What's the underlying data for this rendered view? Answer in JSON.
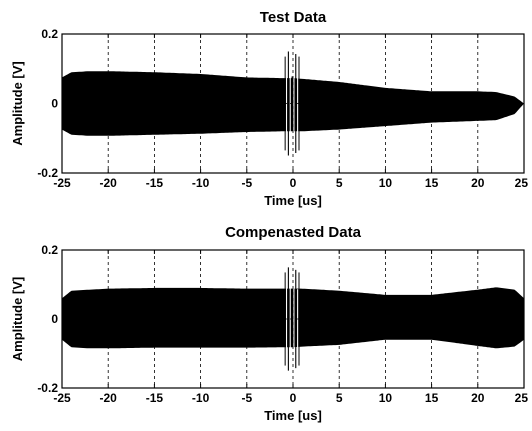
{
  "chart_data": [
    {
      "type": "area",
      "title": "Test Data",
      "xlabel": "Time [us]",
      "ylabel": "Amplitude [V]",
      "xlim": [
        -25,
        25
      ],
      "ylim": [
        -0.2,
        0.2
      ],
      "xticks": [
        -25,
        -20,
        -15,
        -10,
        -5,
        0,
        5,
        10,
        15,
        20,
        25
      ],
      "yticks": [
        -0.2,
        0,
        0.2
      ],
      "ytick_labels": [
        "-0.2",
        "0",
        "0.2"
      ],
      "grid": true,
      "color": "#000000",
      "envelope": {
        "x": [
          -25,
          -24,
          -22,
          -20,
          -15,
          -10,
          -5,
          -1,
          0,
          1,
          5,
          10,
          15,
          20,
          22,
          24,
          25
        ],
        "upper": [
          0.075,
          0.09,
          0.093,
          0.093,
          0.09,
          0.085,
          0.075,
          0.073,
          0.073,
          0.071,
          0.062,
          0.045,
          0.035,
          0.035,
          0.033,
          0.02,
          0.0
        ],
        "lower": [
          -0.075,
          -0.09,
          -0.093,
          -0.093,
          -0.09,
          -0.087,
          -0.082,
          -0.08,
          -0.08,
          -0.08,
          -0.075,
          -0.065,
          -0.055,
          -0.05,
          -0.048,
          -0.03,
          0.0
        ]
      },
      "spike": {
        "x_start": -0.7,
        "x_end": 0.5,
        "amplitude": 0.15
      }
    },
    {
      "type": "area",
      "title": "Compenasted Data",
      "xlabel": "Time [us]",
      "ylabel": "Amplitude [V]",
      "xlim": [
        -25,
        25
      ],
      "ylim": [
        -0.2,
        0.2
      ],
      "xticks": [
        -25,
        -20,
        -15,
        -10,
        -5,
        0,
        5,
        10,
        15,
        20,
        25
      ],
      "yticks": [
        -0.2,
        0,
        0.2
      ],
      "ytick_labels": [
        "-0.2",
        "0",
        "0.2"
      ],
      "grid": true,
      "color": "#000000",
      "envelope": {
        "x": [
          -25,
          -24,
          -22,
          -20,
          -15,
          -10,
          -5,
          -1,
          0,
          1,
          5,
          10,
          15,
          20,
          22,
          24,
          25
        ],
        "upper": [
          0.06,
          0.082,
          0.085,
          0.088,
          0.09,
          0.09,
          0.088,
          0.088,
          0.088,
          0.088,
          0.082,
          0.07,
          0.07,
          0.085,
          0.092,
          0.085,
          0.06
        ],
        "lower": [
          -0.06,
          -0.082,
          -0.085,
          -0.085,
          -0.083,
          -0.083,
          -0.083,
          -0.082,
          -0.082,
          -0.08,
          -0.075,
          -0.06,
          -0.06,
          -0.078,
          -0.085,
          -0.08,
          -0.06
        ]
      },
      "spike": {
        "x_start": -0.7,
        "x_end": 0.5,
        "amplitude": 0.15
      }
    }
  ]
}
